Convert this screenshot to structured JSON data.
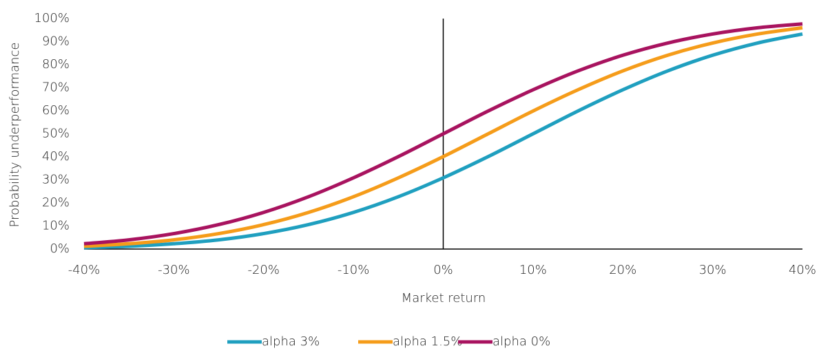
{
  "chart_data": {
    "type": "line",
    "x_label": "Market return",
    "y_label": "Probability underperformance",
    "x": [
      -40,
      -35,
      -30,
      -25,
      -20,
      -15,
      -10,
      -5,
      0,
      5,
      10,
      15,
      20,
      25,
      30,
      35,
      40
    ],
    "series": [
      {
        "name": "alpha 3%",
        "color": "#1f9fbf",
        "values": [
          0.6,
          1.2,
          2.3,
          4.0,
          6.7,
          10.6,
          15.9,
          22.7,
          30.9,
          40.1,
          50,
          59.9,
          69.1,
          77.3,
          84.1,
          89.4,
          93.3
        ]
      },
      {
        "name": "alpha 1.5%",
        "color": "#f59c1a",
        "values": [
          1.2,
          2.3,
          4.0,
          6.7,
          10.6,
          15.9,
          22.7,
          30.9,
          40.1,
          50,
          59.9,
          69.1,
          77.3,
          84.1,
          89.4,
          93.3,
          96.0
        ]
      },
      {
        "name": "alpha 0%",
        "color": "#a8135f",
        "values": [
          2.3,
          4.0,
          6.7,
          10.6,
          15.9,
          22.7,
          30.9,
          40.1,
          50,
          59.9,
          69.1,
          77.3,
          84.1,
          89.4,
          93.3,
          96.0,
          97.7
        ]
      }
    ],
    "xlim": [
      -40,
      40
    ],
    "xticks": [
      {
        "value": -40,
        "label": "-40%"
      },
      {
        "value": -30,
        "label": "-30%"
      },
      {
        "value": -20,
        "label": "-20%"
      },
      {
        "value": -10,
        "label": "-10%"
      },
      {
        "value": 0,
        "label": "0%"
      },
      {
        "value": 10,
        "label": "10%"
      },
      {
        "value": 20,
        "label": "20%"
      },
      {
        "value": 30,
        "label": "30%"
      },
      {
        "value": 40,
        "label": "40%"
      }
    ],
    "ylim": [
      0,
      100
    ],
    "yticks": [
      {
        "value": 0,
        "label": "0%"
      },
      {
        "value": 10,
        "label": "10%"
      },
      {
        "value": 20,
        "label": "20%"
      },
      {
        "value": 30,
        "label": "30%"
      },
      {
        "value": 40,
        "label": "40%"
      },
      {
        "value": 50,
        "label": "50%"
      },
      {
        "value": 60,
        "label": "60%"
      },
      {
        "value": 70,
        "label": "70%"
      },
      {
        "value": 80,
        "label": "80%"
      },
      {
        "value": 90,
        "label": "90%"
      },
      {
        "value": 100,
        "label": "100%"
      }
    ],
    "grid": false,
    "legend": "bottom"
  }
}
